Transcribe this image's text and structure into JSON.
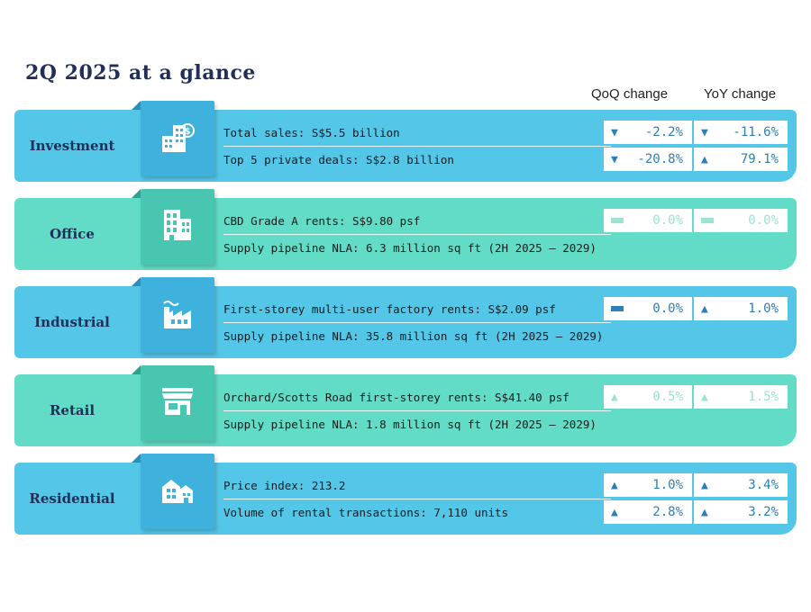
{
  "title": "2Q 2025 at a glance",
  "columns": {
    "qoq": "QoQ change",
    "yoy": "YoY change"
  },
  "sections": [
    {
      "label": "Investment",
      "icon": "buildings-dollar-icon",
      "rows": [
        {
          "text": "Total sales: S$5.5 billion",
          "qoq": {
            "dir": "down",
            "value": "-2.2%"
          },
          "yoy": {
            "dir": "down",
            "value": "-11.6%"
          }
        },
        {
          "text": "Top 5 private deals: S$2.8 billion",
          "qoq": {
            "dir": "down",
            "value": "-20.8%"
          },
          "yoy": {
            "dir": "up",
            "value": "79.1%"
          }
        }
      ]
    },
    {
      "label": "Office",
      "icon": "office-building-icon",
      "rows": [
        {
          "text": "CBD Grade A rents: S$9.80 psf",
          "qoq": {
            "dir": "flat",
            "value": "0.0%"
          },
          "yoy": {
            "dir": "flat",
            "value": "0.0%"
          }
        },
        {
          "text": "Supply pipeline NLA: 6.3 million sq ft (2H 2025 – 2029)"
        }
      ]
    },
    {
      "label": "Industrial",
      "icon": "factory-icon",
      "rows": [
        {
          "text": "First-storey multi-user factory rents: S$2.09 psf",
          "qoq": {
            "dir": "flat",
            "value": "0.0%"
          },
          "yoy": {
            "dir": "up",
            "value": "1.0%"
          }
        },
        {
          "text": "Supply pipeline NLA: 35.8 million sq ft (2H 2025 – 2029)"
        }
      ]
    },
    {
      "label": "Retail",
      "icon": "storefront-icon",
      "rows": [
        {
          "text": "Orchard/Scotts Road first-storey rents: S$41.40 psf",
          "qoq": {
            "dir": "up",
            "value": "0.5%"
          },
          "yoy": {
            "dir": "up",
            "value": "1.5%"
          }
        },
        {
          "text": "Supply pipeline NLA: 1.8 million sq ft (2H 2025 – 2029)"
        }
      ]
    },
    {
      "label": "Residential",
      "icon": "houses-icon",
      "rows": [
        {
          "text": "Price index: 213.2",
          "qoq": {
            "dir": "up",
            "value": "1.0%"
          },
          "yoy": {
            "dir": "up",
            "value": "3.4%"
          }
        },
        {
          "text": "Volume of rental transactions: 7,110 units",
          "qoq": {
            "dir": "up",
            "value": "2.8%"
          },
          "yoy": {
            "dir": "up",
            "value": "3.2%"
          }
        }
      ]
    }
  ],
  "colors": {
    "blue_band": "#54c6e8",
    "teal_band": "#62dcc6",
    "title": "#1f2f57",
    "change_dark": "#2d7fb5",
    "change_light": "#a8dfee"
  }
}
